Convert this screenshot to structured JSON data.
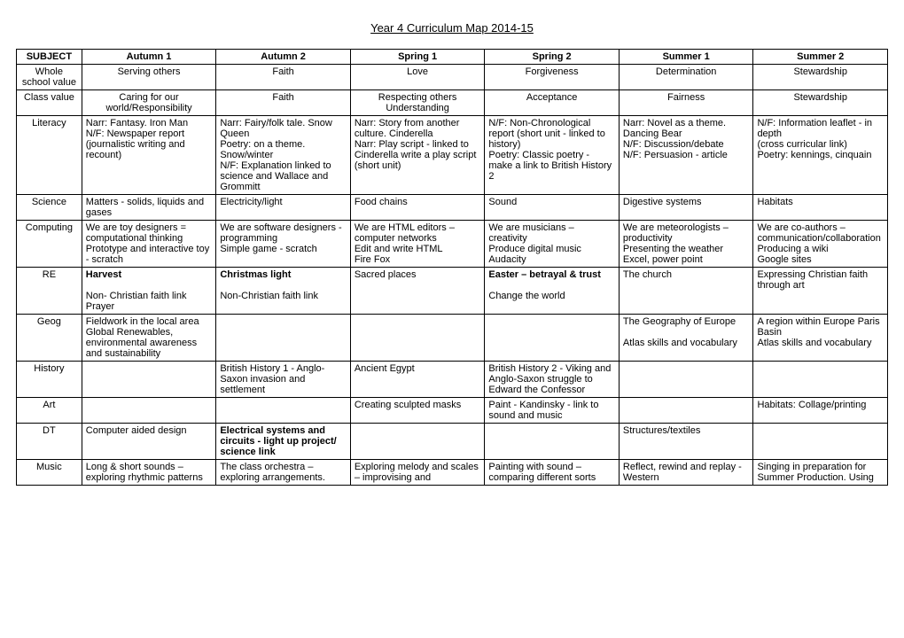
{
  "title": "Year 4 Curriculum Map 2014-15",
  "columns": [
    "SUBJECT",
    "Autumn 1",
    "Autumn 2",
    "Spring 1",
    "Spring 2",
    "Summer 1",
    "Summer 2"
  ],
  "rows": [
    {
      "subject": "Whole school value",
      "center": true,
      "cells": [
        "Serving others",
        "Faith",
        "Love",
        "Forgiveness",
        "Determination",
        "Stewardship"
      ]
    },
    {
      "subject": "Class value",
      "center": true,
      "cells": [
        "Caring for our world/Responsibility",
        "Faith",
        "Respecting others Understanding",
        "Acceptance",
        "Fairness",
        "Stewardship"
      ]
    },
    {
      "subject": "Literacy",
      "cells": [
        "Narr: Fantasy. Iron Man\nN/F: Newspaper report (journalistic writing and recount)",
        "Narr: Fairy/folk tale. Snow Queen\nPoetry: on a theme. Snow/winter\nN/F: Explanation linked to science and Wallace and Grommitt\n ",
        "Narr: Story from another culture. Cinderella\nNarr: Play script - linked to Cinderella write a play script (short unit)",
        "N/F: Non-Chronological report (short unit - linked to history)\nPoetry: Classic poetry - make a link to British History 2",
        "Narr: Novel as a theme. Dancing Bear\nN/F: Discussion/debate\nN/F: Persuasion - article",
        "N/F: Information leaflet - in depth\n(cross curricular link)\nPoetry: kennings, cinquain"
      ]
    },
    {
      "subject": "Science",
      "cells": [
        "Matters - solids,  liquids and gases",
        "Electricity/light",
        "Food chains",
        "Sound",
        "Digestive systems",
        "Habitats"
      ]
    },
    {
      "subject": "Computing",
      "cells": [
        "We are toy designers = computational thinking\nPrototype and interactive toy - scratch",
        "We are software designers - programming\nSimple game - scratch",
        "We are HTML editors – computer networks\nEdit and write HTML\nFire Fox",
        "We are musicians – creativity\nProduce digital  music\nAudacity",
        "We are meteorologists – productivity\nPresenting the weather\nExcel, power point",
        "We are co-authors – communication/collaboration\nProducing a wiki\nGoogle sites"
      ]
    },
    {
      "subject": "RE",
      "cells": [
        {
          "parts": [
            {
              "t": "Harvest",
              "b": true
            },
            {
              "t": "\n\nNon- Christian faith link\nPrayer"
            }
          ]
        },
        {
          "parts": [
            {
              "t": "Christmas light",
              "b": true
            },
            {
              "t": "\n\nNon-Christian faith link"
            }
          ]
        },
        "Sacred places",
        {
          "parts": [
            {
              "t": "Easter – betrayal & trust",
              "b": true
            },
            {
              "t": "\n\nChange the world"
            }
          ]
        },
        " The church",
        " Expressing Christian faith through art"
      ]
    },
    {
      "subject": "Geog",
      "cells": [
        "Fieldwork in the local area\nGlobal Renewables, environmental awareness and sustainability",
        "",
        "",
        "",
        "The Geography of Europe\n\nAtlas skills and vocabulary",
        "A region within Europe Paris Basin\nAtlas skills and vocabulary"
      ]
    },
    {
      "subject": "History",
      "cells": [
        "",
        "British History 1 - Anglo-Saxon invasion and settlement",
        "Ancient Egypt",
        "British History 2 - Viking and Anglo-Saxon struggle to Edward the Confessor",
        "",
        ""
      ]
    },
    {
      "subject": "Art",
      "cells": [
        "",
        "",
        "Creating sculpted masks",
        "Paint - Kandinsky - link to sound and music",
        "",
        "Habitats: Collage/printing"
      ]
    },
    {
      "subject": "DT",
      "cells": [
        "Computer aided design",
        {
          "parts": [
            {
              "t": "Electrical systems and circuits - light up project/ science link",
              "b": true
            }
          ]
        },
        "",
        "",
        "Structures/textiles",
        ""
      ]
    },
    {
      "subject": "Music",
      "cells": [
        "Long & short sounds – exploring rhythmic patterns",
        "The class orchestra – exploring arrangements.",
        "Exploring melody and scales – improvising and",
        "Painting with sound – comparing different sorts",
        "Reflect, rewind and replay - Western",
        "Singing in preparation for Summer Production. Using"
      ]
    }
  ]
}
